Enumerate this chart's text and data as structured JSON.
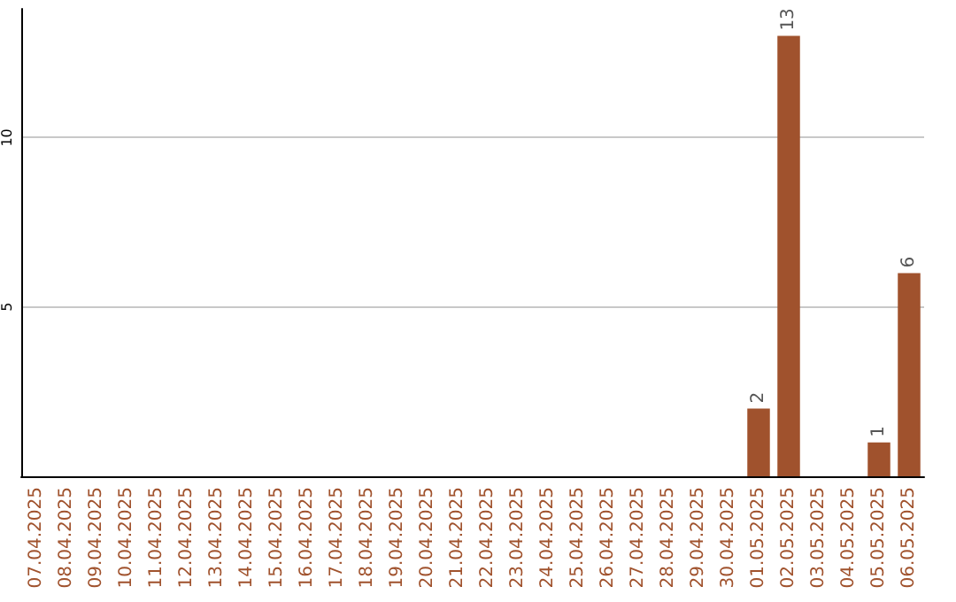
{
  "chart_data": {
    "type": "bar",
    "categories": [
      "07.04.2025",
      "08.04.2025",
      "09.04.2025",
      "10.04.2025",
      "11.04.2025",
      "12.04.2025",
      "13.04.2025",
      "14.04.2025",
      "15.04.2025",
      "16.04.2025",
      "17.04.2025",
      "18.04.2025",
      "19.04.2025",
      "20.04.2025",
      "21.04.2025",
      "22.04.2025",
      "23.04.2025",
      "24.04.2025",
      "25.04.2025",
      "26.04.2025",
      "27.04.2025",
      "28.04.2025",
      "29.04.2025",
      "30.04.2025",
      "01.05.2025",
      "02.05.2025",
      "03.05.2025",
      "04.05.2025",
      "05.05.2025",
      "06.05.2025"
    ],
    "values": [
      0,
      0,
      0,
      0,
      0,
      0,
      0,
      0,
      0,
      0,
      0,
      0,
      0,
      0,
      0,
      0,
      0,
      0,
      0,
      0,
      0,
      0,
      0,
      0,
      2,
      13,
      0,
      0,
      1,
      6
    ],
    "value_labels": [
      null,
      null,
      null,
      null,
      null,
      null,
      null,
      null,
      null,
      null,
      null,
      null,
      null,
      null,
      null,
      null,
      null,
      null,
      null,
      null,
      null,
      null,
      null,
      null,
      "2",
      "13",
      null,
      null,
      "1",
      "6"
    ],
    "color": "#a0522d",
    "ylim": [
      0,
      13.8
    ],
    "yticks": [
      {
        "value": 0,
        "label": null
      },
      5,
      10
    ],
    "grid": "y"
  }
}
